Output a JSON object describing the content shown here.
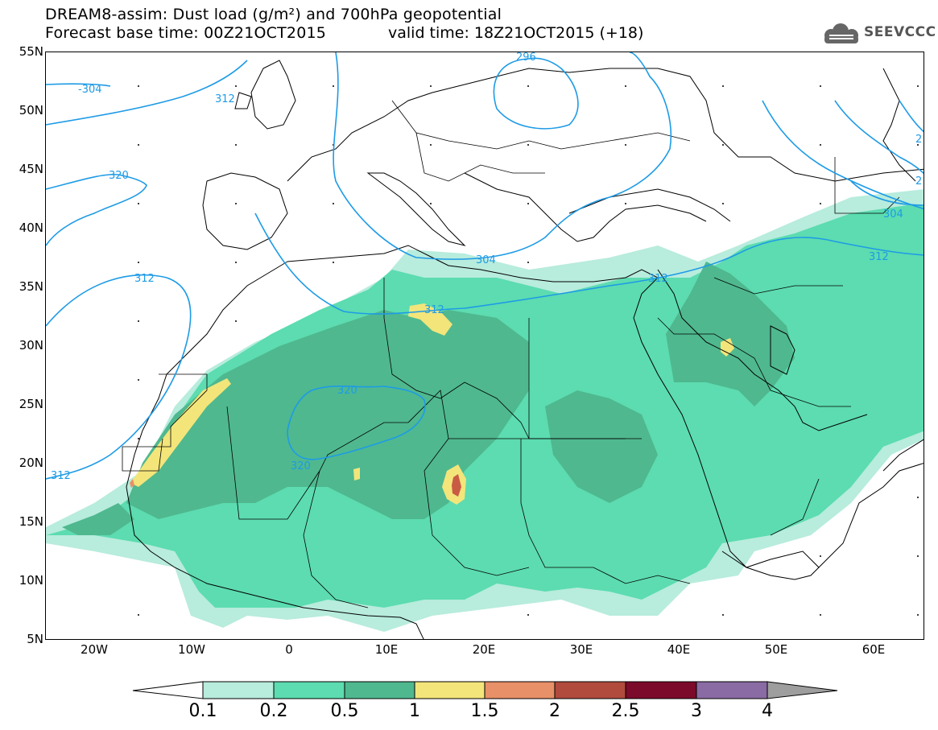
{
  "header": {
    "title_line1": "DREAM8-assim: Dust load (g/m²) and 700hPa geopotential",
    "title_line2": "Forecast base time: 00Z21OCT2015",
    "valid_time": "valid time: 18Z21OCT2015 (+18)",
    "logo_text": "SEEVCCC"
  },
  "axes": {
    "lat_labels": [
      "55N",
      "50N",
      "45N",
      "40N",
      "35N",
      "30N",
      "25N",
      "20N",
      "15N",
      "10N",
      "5N"
    ],
    "lon_labels": [
      "20W",
      "10W",
      "0",
      "10E",
      "20E",
      "30E",
      "40E",
      "50E",
      "60E"
    ]
  },
  "contours": {
    "color": "#1e9be6",
    "labels": [
      "-304",
      "312",
      "320",
      "312",
      "296",
      "304",
      "304",
      "312",
      "312",
      "320",
      "320",
      "312",
      "2",
      "2"
    ]
  },
  "legend": {
    "levels": [
      "0.1",
      "0.2",
      "0.5",
      "1",
      "1.5",
      "2",
      "2.5",
      "3",
      "4"
    ],
    "colors": [
      "#b8ecdd",
      "#5cdcb0",
      "#4fb88f",
      "#f3e57a",
      "#e89067",
      "#b14b3d",
      "#7c0a2a",
      "#8a6ba3"
    ]
  },
  "dust_colors": {
    "light": "#b8ecdd",
    "mid": "#5cdcb0",
    "dark": "#4fb88f",
    "yellow": "#f3e57a",
    "orange": "#e89067",
    "red": "#c95b45"
  }
}
